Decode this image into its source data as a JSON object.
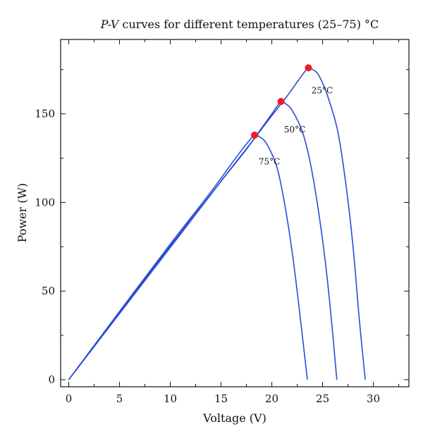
{
  "chart_data": {
    "type": "line",
    "title": {
      "italic_part": "P-V",
      "rest": " curves for different temperatures (25–75) °C"
    },
    "xlabel": "Voltage (V)",
    "ylabel": "Power (W)",
    "xlim": [
      -0.8,
      33.5
    ],
    "ylim": [
      -4,
      192
    ],
    "xticks": [
      0,
      5,
      10,
      15,
      20,
      25,
      30
    ],
    "yticks": [
      0,
      50,
      100,
      150
    ],
    "grid": false,
    "line_color": "#2a4bd7",
    "marker_color": "#ee1c25",
    "series": [
      {
        "label": "25°C",
        "label_at": [
          23.9,
          161.5
        ],
        "mpp": [
          23.6,
          176
        ],
        "points": [
          [
            0,
            0
          ],
          [
            5,
            37.3
          ],
          [
            10,
            74.6
          ],
          [
            15,
            112
          ],
          [
            18,
            134
          ],
          [
            20,
            149
          ],
          [
            21.5,
            160
          ],
          [
            22.5,
            168
          ],
          [
            23.2,
            173.5
          ],
          [
            23.6,
            176
          ],
          [
            24,
            175
          ],
          [
            24.6,
            172
          ],
          [
            25.5,
            160
          ],
          [
            26.5,
            140
          ],
          [
            27.3,
            110
          ],
          [
            28,
            75
          ],
          [
            28.6,
            35
          ],
          [
            29.2,
            0
          ]
        ]
      },
      {
        "label": "50°C",
        "label_at": [
          21.2,
          139.5
        ],
        "mpp": [
          20.9,
          157
        ],
        "points": [
          [
            0,
            0
          ],
          [
            5,
            38
          ],
          [
            10,
            75.5
          ],
          [
            15,
            112
          ],
          [
            17.5,
            130
          ],
          [
            19,
            142
          ],
          [
            20,
            150
          ],
          [
            20.9,
            157
          ],
          [
            21.3,
            156
          ],
          [
            22,
            152
          ],
          [
            23,
            140
          ],
          [
            23.8,
            122
          ],
          [
            24.6,
            95
          ],
          [
            25.3,
            65
          ],
          [
            25.9,
            32
          ],
          [
            26.4,
            0
          ]
        ]
      },
      {
        "label": "75°C",
        "label_at": [
          18.7,
          121.5
        ],
        "mpp": [
          18.3,
          138
        ],
        "points": [
          [
            0,
            0
          ],
          [
            5,
            38.5
          ],
          [
            10,
            76.5
          ],
          [
            14,
            106
          ],
          [
            16.3,
            124
          ],
          [
            17.5,
            133
          ],
          [
            18.3,
            138
          ],
          [
            18.8,
            137
          ],
          [
            19.5,
            133
          ],
          [
            20.5,
            120
          ],
          [
            21.3,
            98
          ],
          [
            22.1,
            68
          ],
          [
            22.8,
            35
          ],
          [
            23.5,
            0
          ]
        ]
      }
    ]
  }
}
